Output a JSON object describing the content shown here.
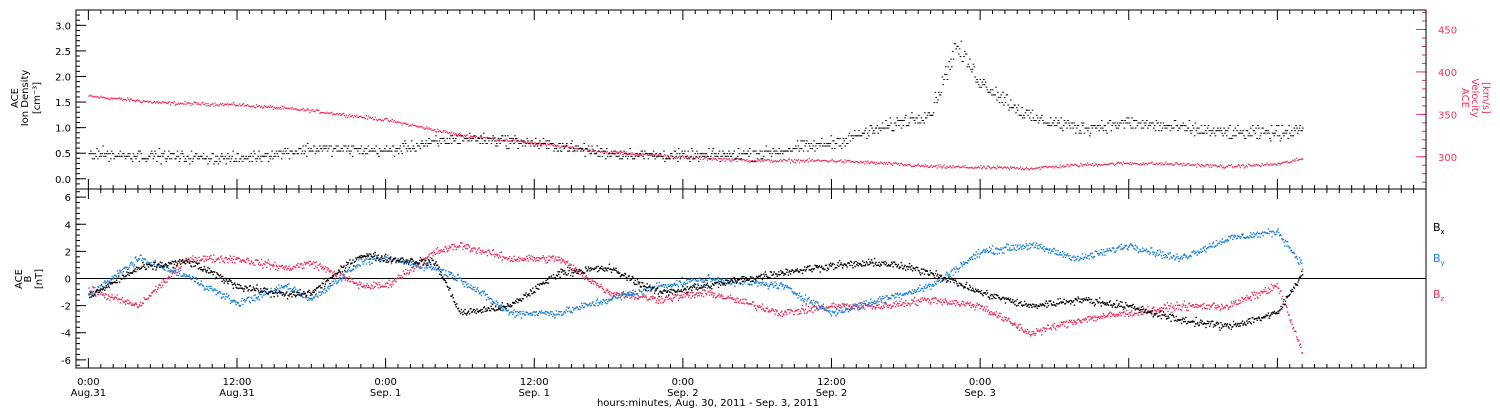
{
  "chart_data": [
    {
      "type": "scatter",
      "panel": "density-velocity",
      "ylabel_lines": [
        "ACE",
        "Ion Density"
      ],
      "ylabel_unit": "[cm⁻³]",
      "y2label_lines": [
        "ACE",
        "Velocity"
      ],
      "y2label_unit": "[km/s]",
      "ylim": [
        -0.2,
        3.3
      ],
      "y_ticks": [
        0.0,
        0.5,
        1.0,
        1.5,
        2.0,
        2.5,
        3.0
      ],
      "y_tick_labels": [
        "0.0",
        "0.5",
        "1.0",
        "1.5",
        "2.0",
        "2.5",
        "3.0"
      ],
      "y2lim": [
        262,
        473
      ],
      "y2_ticks": [
        300,
        350,
        400,
        450
      ],
      "y2_tick_labels": [
        "300",
        "350",
        "400",
        "450"
      ],
      "series": [
        {
          "key": "density",
          "color": "#000000",
          "x_hours": [
            0,
            6,
            12,
            18,
            24,
            30,
            34,
            38,
            42,
            48,
            54,
            60,
            64,
            68,
            70,
            72,
            76,
            80,
            84,
            88,
            92,
            96,
            98
          ],
          "values": [
            0.5,
            0.45,
            0.4,
            0.6,
            0.55,
            0.8,
            0.75,
            0.65,
            0.5,
            0.45,
            0.5,
            0.7,
            1.0,
            1.3,
            2.6,
            1.9,
            1.2,
            1.0,
            1.1,
            1.0,
            0.9,
            0.9,
            1.0
          ]
        },
        {
          "key": "velocity",
          "color": "#e8335f",
          "x_hours": [
            0,
            6,
            12,
            18,
            24,
            30,
            34,
            38,
            42,
            48,
            54,
            60,
            64,
            68,
            72,
            76,
            80,
            84,
            88,
            92,
            96,
            98
          ],
          "values": [
            372,
            364,
            362,
            355,
            344,
            326,
            320,
            313,
            306,
            300,
            296,
            296,
            293,
            289,
            288,
            287,
            291,
            293,
            292,
            289,
            292,
            298
          ]
        }
      ]
    },
    {
      "type": "scatter",
      "panel": "magnetic-field",
      "ylabel_lines": [
        "ACE",
        "B"
      ],
      "ylabel_unit": "[nT]",
      "ylim": [
        -6.6,
        6.6
      ],
      "y_ticks": [
        -6,
        -4,
        -2,
        0,
        2,
        4,
        6
      ],
      "y_tick_labels": [
        "-6",
        "-4",
        "-2",
        "0",
        "2",
        "4",
        "6"
      ],
      "legend_position": "right",
      "series": [
        {
          "name": "Bx",
          "color": "#000000",
          "x_hours": [
            0,
            4,
            8,
            12,
            16,
            18,
            22,
            24,
            28,
            30,
            34,
            38,
            42,
            46,
            50,
            56,
            60,
            64,
            68,
            72,
            76,
            80,
            84,
            88,
            92,
            96,
            98
          ],
          "values": [
            -1.3,
            0.8,
            1.3,
            -0.5,
            -1.2,
            -1.0,
            1.8,
            1.5,
            1.2,
            -2.5,
            -2.0,
            0.5,
            0.8,
            -1.0,
            -0.5,
            0.5,
            1.0,
            1.2,
            0.5,
            -1.0,
            -2.0,
            -1.5,
            -2.0,
            -3.0,
            -3.5,
            -2.5,
            0.5
          ]
        },
        {
          "name": "By",
          "color": "#1a7fd6",
          "x_hours": [
            0,
            4,
            8,
            12,
            16,
            18,
            22,
            24,
            28,
            30,
            34,
            38,
            42,
            46,
            50,
            56,
            60,
            64,
            68,
            72,
            76,
            80,
            84,
            88,
            92,
            96,
            98
          ],
          "values": [
            -1.2,
            1.5,
            0.2,
            -1.8,
            -0.5,
            -1.5,
            1.3,
            1.5,
            0.8,
            0.0,
            -2.5,
            -2.5,
            -1.5,
            -0.5,
            0.0,
            -0.5,
            -2.5,
            -1.5,
            -0.5,
            2.0,
            2.5,
            1.5,
            2.5,
            1.5,
            3.0,
            3.5,
            1.0
          ]
        },
        {
          "name": "Bz",
          "color": "#e8335f",
          "x_hours": [
            0,
            4,
            8,
            12,
            16,
            18,
            22,
            24,
            28,
            30,
            34,
            38,
            42,
            46,
            50,
            56,
            60,
            64,
            68,
            72,
            76,
            80,
            84,
            88,
            92,
            96,
            98
          ],
          "values": [
            -0.8,
            -2.0,
            1.5,
            1.5,
            0.8,
            1.2,
            -0.5,
            -0.5,
            2.0,
            2.5,
            1.5,
            1.5,
            -1.0,
            -1.5,
            -1.0,
            -2.5,
            -2.0,
            -2.0,
            -1.5,
            -2.0,
            -4.0,
            -3.0,
            -2.5,
            -2.0,
            -2.0,
            -0.5,
            -5.5
          ]
        }
      ],
      "legend": [
        {
          "label": "B",
          "sub": "x",
          "color": "#000000"
        },
        {
          "label": "B",
          "sub": "y",
          "color": "#1a7fd6"
        },
        {
          "label": "B",
          "sub": "z",
          "color": "#e8335f"
        }
      ]
    }
  ],
  "x_axis": {
    "xlim_hours": [
      -1,
      108
    ],
    "major_ticks_hours": [
      0,
      12,
      24,
      36,
      48,
      60,
      72
    ],
    "time_labels": [
      "0:00",
      "12:00",
      "0:00",
      "12:00",
      "0:00",
      "12:00",
      "0:00"
    ],
    "date_labels": [
      "Aug.31",
      "Aug.31",
      "Sep. 1",
      "Sep. 1",
      "Sep. 2",
      "Sep. 2",
      "Sep. 3"
    ],
    "major_tick_step_hours": 12,
    "minor_tick_step_hours": 1,
    "xlabel": "hours:minutes, Aug. 30, 2011 - Sep.  3, 2011"
  }
}
